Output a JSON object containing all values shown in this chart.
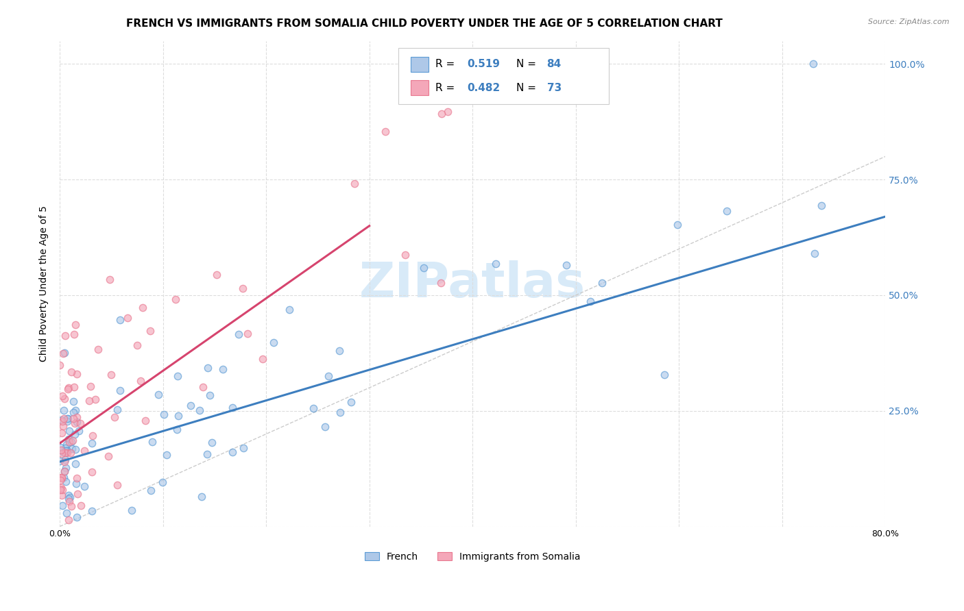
{
  "title": "FRENCH VS IMMIGRANTS FROM SOMALIA CHILD POVERTY UNDER THE AGE OF 5 CORRELATION CHART",
  "source": "Source: ZipAtlas.com",
  "ylabel": "Child Poverty Under the Age of 5",
  "xlim": [
    0,
    0.8
  ],
  "ylim": [
    0.0,
    1.05
  ],
  "ytick_positions": [
    0.0,
    0.25,
    0.5,
    0.75,
    1.0
  ],
  "yticklabels_right": [
    "",
    "25.0%",
    "50.0%",
    "75.0%",
    "100.0%"
  ],
  "french_color_fill": "#aec8e8",
  "french_color_edge": "#5b9bd5",
  "somalia_color_fill": "#f4a7b9",
  "somalia_color_edge": "#e8778f",
  "french_line_color": "#3d7ebf",
  "somalia_line_color": "#d6446e",
  "diagonal_color": "#cccccc",
  "R_french": "0.519",
  "N_french": "84",
  "R_somalia": "0.482",
  "N_somalia": "73",
  "legend_label_french": "French",
  "legend_label_somalia": "Immigrants from Somalia",
  "watermark": "ZIPatlas",
  "french_line_x0": 0.0,
  "french_line_y0": 0.14,
  "french_line_x1": 0.8,
  "french_line_y1": 0.67,
  "somalia_line_x0": 0.0,
  "somalia_line_y0": 0.18,
  "somalia_line_x1": 0.3,
  "somalia_line_y1": 0.65,
  "bg_color": "#ffffff",
  "grid_color": "#dddddd",
  "title_fontsize": 11,
  "axis_label_fontsize": 10,
  "tick_fontsize": 9,
  "scatter_size": 55,
  "scatter_alpha": 0.65,
  "scatter_edgewidth": 1.0,
  "seed_french": 10,
  "seed_somalia": 20
}
